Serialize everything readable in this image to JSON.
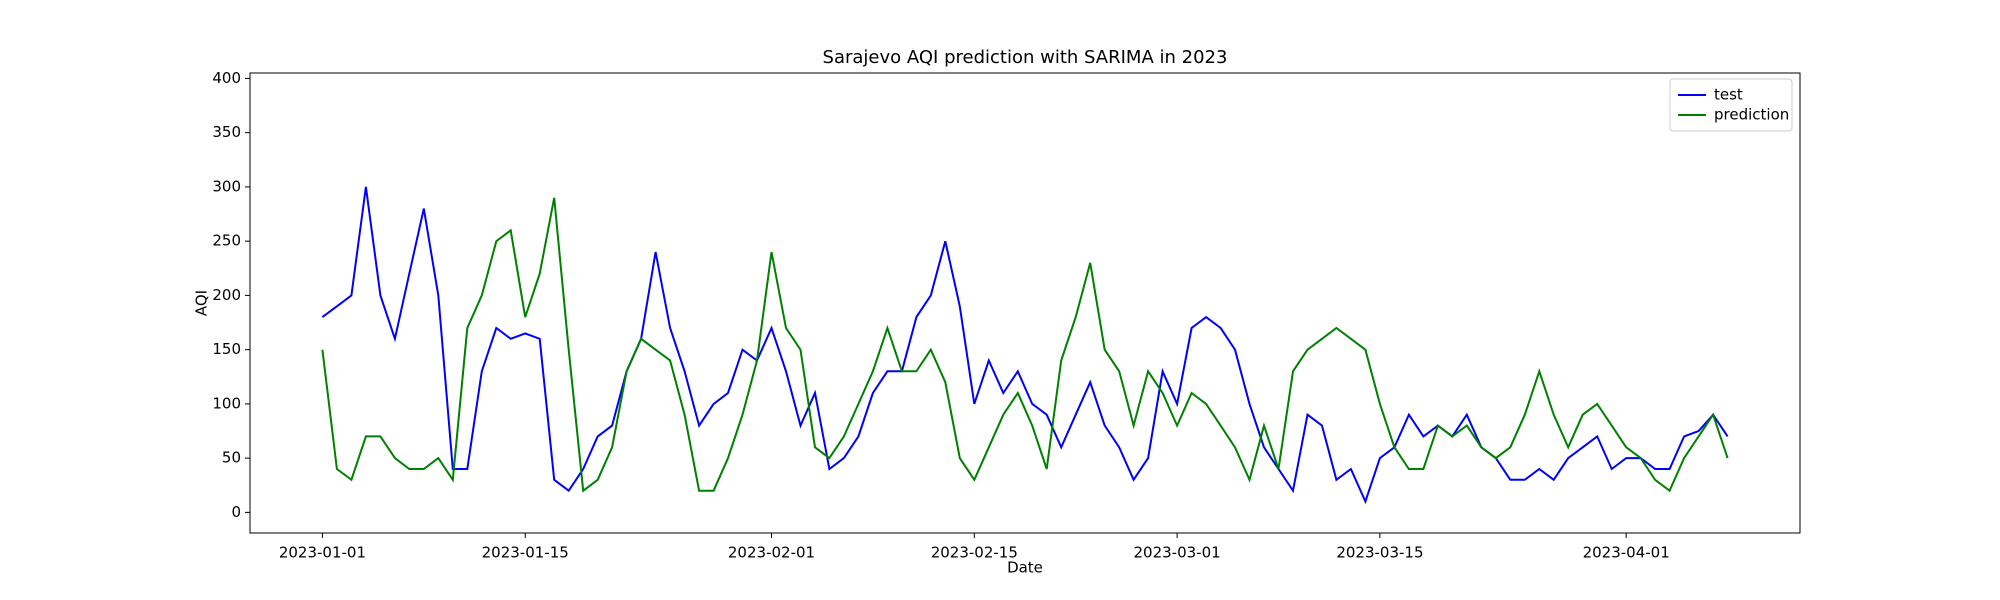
{
  "chart_data": {
    "type": "line",
    "title": "Sarajevo AQI prediction with SARIMA in 2023",
    "x_label": "Date",
    "y_label": "AQI",
    "x": [
      "2023-01-01",
      "2023-01-02",
      "2023-01-03",
      "2023-01-04",
      "2023-01-05",
      "2023-01-06",
      "2023-01-07",
      "2023-01-08",
      "2023-01-09",
      "2023-01-10",
      "2023-01-11",
      "2023-01-12",
      "2023-01-13",
      "2023-01-14",
      "2023-01-15",
      "2023-01-16",
      "2023-01-17",
      "2023-01-18",
      "2023-01-19",
      "2023-01-20",
      "2023-01-21",
      "2023-01-22",
      "2023-01-23",
      "2023-01-24",
      "2023-01-25",
      "2023-01-26",
      "2023-01-27",
      "2023-01-28",
      "2023-01-29",
      "2023-01-30",
      "2023-01-31",
      "2023-02-01",
      "2023-02-02",
      "2023-02-03",
      "2023-02-04",
      "2023-02-05",
      "2023-02-06",
      "2023-02-07",
      "2023-02-08",
      "2023-02-09",
      "2023-02-10",
      "2023-02-11",
      "2023-02-12",
      "2023-02-13",
      "2023-02-14",
      "2023-02-15",
      "2023-02-16",
      "2023-02-17",
      "2023-02-18",
      "2023-02-19",
      "2023-02-20",
      "2023-02-21",
      "2023-02-22",
      "2023-02-23",
      "2023-02-24",
      "2023-02-25",
      "2023-02-26",
      "2023-02-27",
      "2023-02-28",
      "2023-03-01",
      "2023-03-02",
      "2023-03-03",
      "2023-03-04",
      "2023-03-05",
      "2023-03-06",
      "2023-03-07",
      "2023-03-08",
      "2023-03-09",
      "2023-03-10",
      "2023-03-11",
      "2023-03-12",
      "2023-03-13",
      "2023-03-14",
      "2023-03-15",
      "2023-03-16",
      "2023-03-17",
      "2023-03-18",
      "2023-03-19",
      "2023-03-20",
      "2023-03-21",
      "2023-03-22",
      "2023-03-23",
      "2023-03-24",
      "2023-03-25",
      "2023-03-26",
      "2023-03-27",
      "2023-03-28",
      "2023-03-29",
      "2023-03-30",
      "2023-03-31",
      "2023-04-01",
      "2023-04-02",
      "2023-04-03",
      "2023-04-04",
      "2023-04-05",
      "2023-04-06",
      "2023-04-07",
      "2023-04-08"
    ],
    "series": [
      {
        "name": "test",
        "color": "#0000ff",
        "values": [
          180,
          190,
          200,
          300,
          200,
          160,
          220,
          280,
          200,
          40,
          40,
          130,
          170,
          160,
          165,
          160,
          30,
          20,
          40,
          70,
          80,
          130,
          160,
          240,
          170,
          130,
          80,
          100,
          110,
          150,
          140,
          170,
          130,
          80,
          110,
          40,
          50,
          70,
          110,
          130,
          130,
          180,
          200,
          250,
          190,
          100,
          140,
          110,
          130,
          100,
          90,
          60,
          90,
          120,
          80,
          60,
          30,
          50,
          130,
          100,
          170,
          180,
          170,
          150,
          100,
          60,
          40,
          20,
          90,
          80,
          30,
          40,
          10,
          50,
          60,
          90,
          70,
          80,
          70,
          90,
          60,
          50,
          30,
          30,
          40,
          30,
          50,
          60,
          70,
          40,
          50,
          50,
          40,
          40,
          70,
          75,
          90,
          70
        ]
      },
      {
        "name": "prediction",
        "color": "#008000",
        "values": [
          150,
          40,
          30,
          70,
          70,
          50,
          40,
          40,
          50,
          30,
          170,
          200,
          250,
          260,
          180,
          220,
          290,
          150,
          20,
          30,
          60,
          130,
          160,
          150,
          140,
          90,
          20,
          20,
          50,
          90,
          140,
          240,
          170,
          150,
          60,
          50,
          70,
          100,
          130,
          170,
          130,
          130,
          150,
          120,
          50,
          30,
          60,
          90,
          110,
          80,
          40,
          140,
          180,
          230,
          150,
          130,
          80,
          130,
          110,
          80,
          110,
          100,
          80,
          60,
          30,
          80,
          40,
          130,
          150,
          160,
          170,
          160,
          150,
          100,
          60,
          40,
          40,
          80,
          70,
          80,
          60,
          50,
          60,
          90,
          130,
          90,
          60,
          90,
          100,
          80,
          60,
          50,
          30,
          20,
          50,
          70,
          90,
          50
        ]
      }
    ],
    "xlim": [
      "2022-12-27",
      "2023-04-13"
    ],
    "xticks": [
      "2023-01-01",
      "2023-01-15",
      "2023-02-01",
      "2023-02-15",
      "2023-03-01",
      "2023-03-15",
      "2023-04-01"
    ],
    "ylim": [
      -19,
      405
    ],
    "yticks": [
      0,
      50,
      100,
      150,
      200,
      250,
      300,
      350,
      400
    ],
    "legend": "upper right"
  }
}
